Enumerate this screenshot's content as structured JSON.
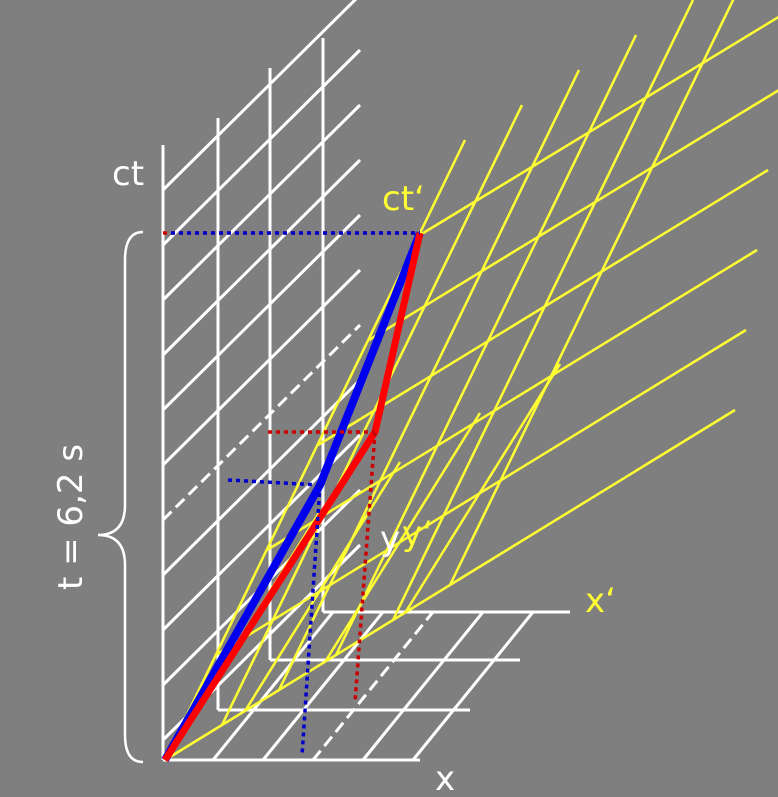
{
  "labels": {
    "ct": "ct",
    "ct_prime": "ct‘",
    "y": "y",
    "y_prime": "y‘",
    "x_prime": "x‘",
    "x": "x",
    "duration": "t = 6,2 s"
  }
}
